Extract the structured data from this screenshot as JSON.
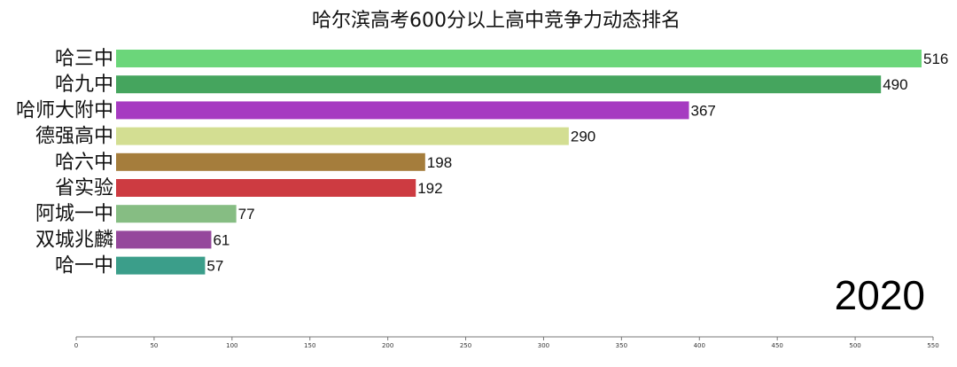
{
  "chart_data": {
    "type": "bar",
    "orientation": "horizontal",
    "title": "哈尔滨高考600分以上高中竞争力动态排名",
    "year": "2020",
    "categories": [
      "哈三中",
      "哈九中",
      "哈师大附中",
      "德强高中",
      "哈六中",
      "省实验",
      "阿城一中",
      "双城兆麟",
      "哈一中"
    ],
    "values": [
      516,
      490,
      367,
      290,
      198,
      192,
      77,
      61,
      57
    ],
    "colors": [
      "#6bd67a",
      "#45a55e",
      "#a63bc1",
      "#d3de92",
      "#a57d3c",
      "#cd3b41",
      "#86bd83",
      "#95489c",
      "#3b9e8a"
    ],
    "xlim": [
      0,
      550
    ],
    "xticks": [
      0,
      50,
      100,
      150,
      200,
      250,
      300,
      350,
      400,
      450,
      500,
      550
    ],
    "grid": false,
    "legend": "none"
  }
}
